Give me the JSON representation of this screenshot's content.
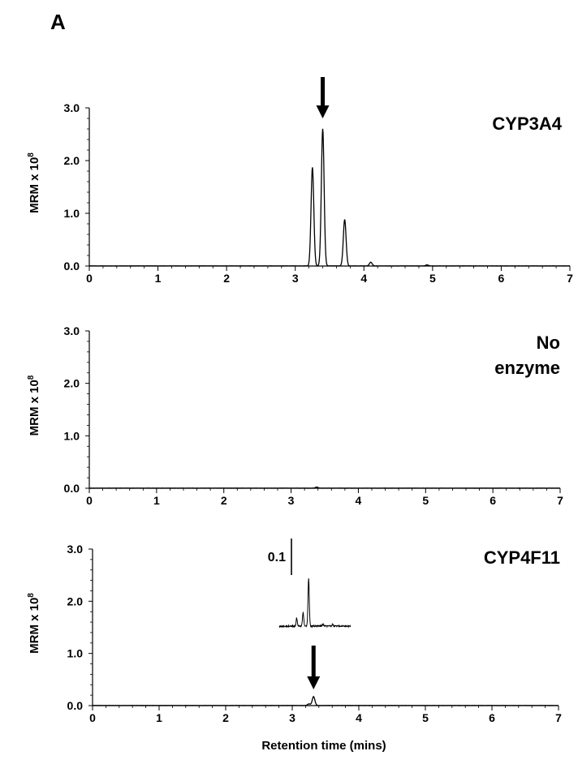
{
  "figure": {
    "panel_letter": "A",
    "ylabel_base": "MRM x 10",
    "ylabel_exp": "8"
  },
  "chart_data": [
    {
      "type": "line",
      "title": "CYP3A4",
      "title_lines": [
        "CYP3A4"
      ],
      "xlabel": "",
      "ylabel": "MRM x 10^8",
      "xlim": [
        0,
        7
      ],
      "ylim": [
        0,
        3.0
      ],
      "x_ticks": [
        "0",
        "1",
        "2",
        "3",
        "4",
        "5",
        "6",
        "7"
      ],
      "y_ticks": [
        "0.0",
        "1.0",
        "2.0",
        "3.0"
      ],
      "grid": false,
      "peaks": [
        {
          "x": 3.25,
          "y": 1.87
        },
        {
          "x": 3.4,
          "y": 2.6
        },
        {
          "x": 3.72,
          "y": 0.88
        },
        {
          "x": 4.1,
          "y": 0.07
        },
        {
          "x": 4.92,
          "y": 0.02
        }
      ],
      "annotations": [
        {
          "type": "arrow",
          "x": 3.4,
          "label": ""
        }
      ]
    },
    {
      "type": "line",
      "title": "No enzyme",
      "title_lines": [
        "No",
        "enzyme"
      ],
      "xlabel": "",
      "ylabel": "MRM x 10^8",
      "xlim": [
        0,
        7
      ],
      "ylim": [
        0,
        3.0
      ],
      "x_ticks": [
        "0",
        "1",
        "2",
        "3",
        "4",
        "5",
        "6",
        "7"
      ],
      "y_ticks": [
        "0.0",
        "1.0",
        "2.0",
        "3.0"
      ],
      "grid": false,
      "peaks": [
        {
          "x": 3.38,
          "y": 0.02
        }
      ],
      "annotations": []
    },
    {
      "type": "line",
      "title": "CYP4F11",
      "title_lines": [
        "CYP4F11"
      ],
      "xlabel": "Retention time (mins)",
      "ylabel": "MRM x 10^8",
      "xlim": [
        0,
        7
      ],
      "ylim": [
        0,
        3.0
      ],
      "x_ticks": [
        "0",
        "1",
        "2",
        "3",
        "4",
        "5",
        "6",
        "7"
      ],
      "y_ticks": [
        "0.0",
        "1.0",
        "2.0",
        "3.0"
      ],
      "grid": false,
      "peaks": [
        {
          "x": 3.25,
          "y": 0.03
        },
        {
          "x": 3.32,
          "y": 0.17
        }
      ],
      "annotations": [
        {
          "type": "arrow",
          "x": 3.32,
          "label": ""
        }
      ],
      "inset": {
        "scale_bar_label": "0.1",
        "scale_bar_value": 0.1,
        "peaks": [
          {
            "x": 3.17,
            "y": 0.022
          },
          {
            "x": 3.25,
            "y": 0.037
          },
          {
            "x": 3.32,
            "y": 0.13
          },
          {
            "x": 3.5,
            "y": 0.005
          },
          {
            "x": 3.62,
            "y": 0.004
          }
        ]
      }
    }
  ]
}
